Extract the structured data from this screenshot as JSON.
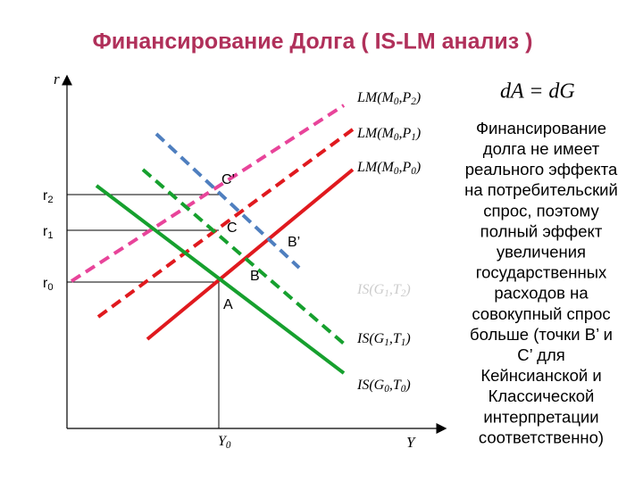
{
  "title": "Финансирование Долга ( IS-LM анализ )",
  "formula": "dA = dG",
  "axes": {
    "y": "r",
    "x": "Y",
    "x_level": [
      "Y",
      "0"
    ]
  },
  "levels": [
    [
      "r",
      "2"
    ],
    [
      "r",
      "1"
    ],
    [
      "r",
      "0"
    ]
  ],
  "points": [
    "C’",
    "C",
    "B’",
    "B",
    "A"
  ],
  "curves": [
    {
      "label": [
        "LM(M",
        "0",
        ",P",
        "2",
        ")"
      ]
    },
    {
      "label": [
        "LM(M",
        "0",
        ",P",
        "1",
        ")"
      ]
    },
    {
      "label": [
        "LM(M",
        "0",
        ",P",
        "0",
        ")"
      ]
    },
    {
      "label": [
        "IS(G",
        "1",
        ",T",
        "2",
        ")"
      ]
    },
    {
      "label": [
        "IS(G",
        "1",
        ",T",
        "1",
        ")"
      ]
    },
    {
      "label": [
        "IS(G",
        "0",
        ",T",
        "0",
        ")"
      ]
    }
  ],
  "note": [
    "Финансирование",
    "долга не имеет",
    "реального эффекта",
    "на потребительский",
    "спрос, поэтому",
    "полный эффект",
    "увеличения",
    "государственных",
    "расходов на",
    "совокупный спрос",
    "больше (точки B’ и",
    "C’ для",
    "Кейнсианской и",
    "Классической",
    "интерпретации",
    "соответственно)"
  ]
}
